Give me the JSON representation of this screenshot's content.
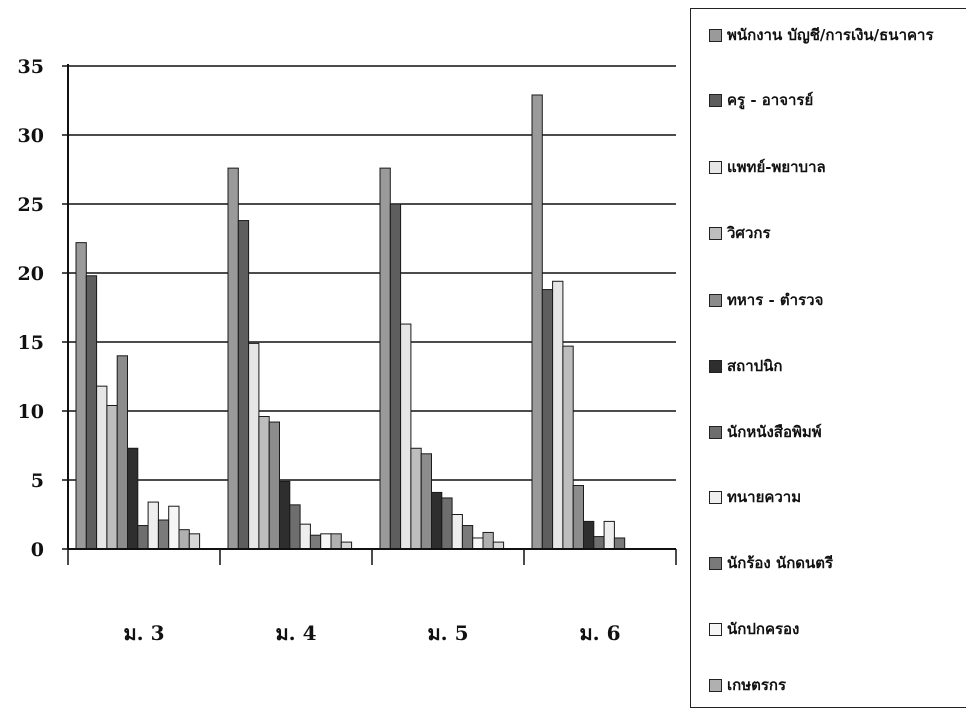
{
  "chart_data": {
    "type": "bar",
    "categories": [
      "ม. 3",
      "ม. 4",
      "ม. 5",
      "ม. 6"
    ],
    "ylim": [
      0,
      35
    ],
    "yticks": [
      0,
      5,
      10,
      15,
      20,
      25,
      30,
      35
    ],
    "grid": true,
    "legend_position": "right",
    "series": [
      {
        "name": "พนักงาน บัญชี/การเงิน/ธนาคาร",
        "color": "#9a9a9a",
        "values": [
          22.2,
          27.6,
          27.6,
          32.9
        ]
      },
      {
        "name": "ครู - อาจารย์",
        "color": "#5e5e5e",
        "values": [
          19.8,
          23.8,
          25.0,
          18.8
        ]
      },
      {
        "name": "แพทย์-พยาบาล",
        "color": "#e6e6e6",
        "values": [
          11.8,
          14.9,
          16.3,
          19.4
        ]
      },
      {
        "name": "วิศวกร",
        "color": "#bdbdbd",
        "values": [
          10.4,
          9.6,
          7.3,
          14.7
        ]
      },
      {
        "name": "ทหาร - ตำรวจ",
        "color": "#8c8c8c",
        "values": [
          14.0,
          9.2,
          6.9,
          4.6
        ]
      },
      {
        "name": "สถาปนิก",
        "color": "#2e2e2e",
        "values": [
          7.3,
          4.9,
          4.1,
          2.0
        ]
      },
      {
        "name": "นักหนังสือพิมพ์",
        "color": "#6e6e6e",
        "values": [
          1.7,
          3.2,
          3.7,
          0.9
        ]
      },
      {
        "name": "ทนายความ",
        "color": "#eeeeee",
        "values": [
          3.4,
          1.8,
          2.5,
          2.0
        ]
      },
      {
        "name": "นักร้อง นักดนตรี",
        "color": "#7a7a7a",
        "values": [
          2.1,
          1.0,
          1.7,
          0.8
        ]
      },
      {
        "name": "นักปกครอง",
        "color": "#f6f6f6",
        "values": [
          3.1,
          1.1,
          0.8,
          0.0
        ]
      },
      {
        "name": "เกษตรกร",
        "color": "#b0b0b0",
        "values": [
          1.4,
          1.1,
          1.2,
          0.0
        ]
      },
      {
        "name": "",
        "color": "#d8d8d8",
        "values": [
          1.1,
          0.5,
          0.5,
          0.0
        ]
      }
    ]
  }
}
